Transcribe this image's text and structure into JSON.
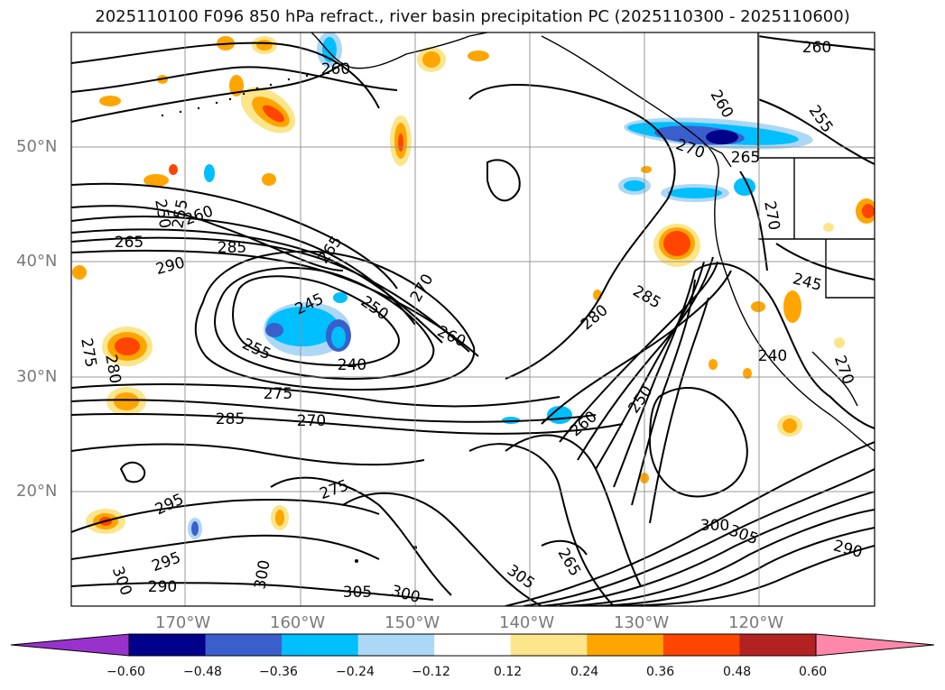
{
  "title": "2025110100 F096 850 hPa refract., river basin precipitation PC (2025110300 - 2025110600)",
  "map": {
    "lat_labels": [
      "50°N",
      "40°N",
      "30°N",
      "20°N"
    ],
    "lon_labels": [
      "170°W",
      "160°W",
      "150°W",
      "140°W",
      "130°W",
      "120°W"
    ],
    "contour_labels": [
      {
        "text": "260"
      },
      {
        "text": "260"
      },
      {
        "text": "255"
      },
      {
        "text": "260"
      },
      {
        "text": "270"
      },
      {
        "text": "265"
      },
      {
        "text": "250"
      },
      {
        "text": "255"
      },
      {
        "text": "260"
      },
      {
        "text": "265"
      },
      {
        "text": "285"
      },
      {
        "text": "290"
      },
      {
        "text": "265"
      },
      {
        "text": "270"
      },
      {
        "text": "245"
      },
      {
        "text": "250"
      },
      {
        "text": "260"
      },
      {
        "text": "255"
      },
      {
        "text": "240"
      },
      {
        "text": "275"
      },
      {
        "text": "280"
      },
      {
        "text": "275"
      },
      {
        "text": "285"
      },
      {
        "text": "270"
      },
      {
        "text": "280"
      },
      {
        "text": "285"
      },
      {
        "text": "270"
      },
      {
        "text": "245"
      },
      {
        "text": "240"
      },
      {
        "text": "250"
      },
      {
        "text": "260"
      },
      {
        "text": "270"
      },
      {
        "text": "295"
      },
      {
        "text": "295"
      },
      {
        "text": "290"
      },
      {
        "text": "300"
      },
      {
        "text": "300"
      },
      {
        "text": "305"
      },
      {
        "text": "300"
      },
      {
        "text": "305"
      },
      {
        "text": "305"
      },
      {
        "text": "290"
      },
      {
        "text": "265"
      },
      {
        "text": "300"
      },
      {
        "text": "275"
      }
    ],
    "colors": {
      "ocean": "#ffffff",
      "contour": "#000000",
      "grid": "#8f8f8f"
    }
  },
  "colorbar": {
    "ticks": [
      "−0.60",
      "−0.48",
      "−0.36",
      "−0.24",
      "−0.12",
      "0.12",
      "0.24",
      "0.36",
      "0.48",
      "0.60"
    ],
    "colors": [
      "#9932cc",
      "#00008b",
      "#3a5fcd",
      "#00bfff",
      "#add8f5",
      "#ffffff",
      "#fce58a",
      "#ffa500",
      "#ff4500",
      "#b22222",
      "#ff88aa"
    ]
  }
}
